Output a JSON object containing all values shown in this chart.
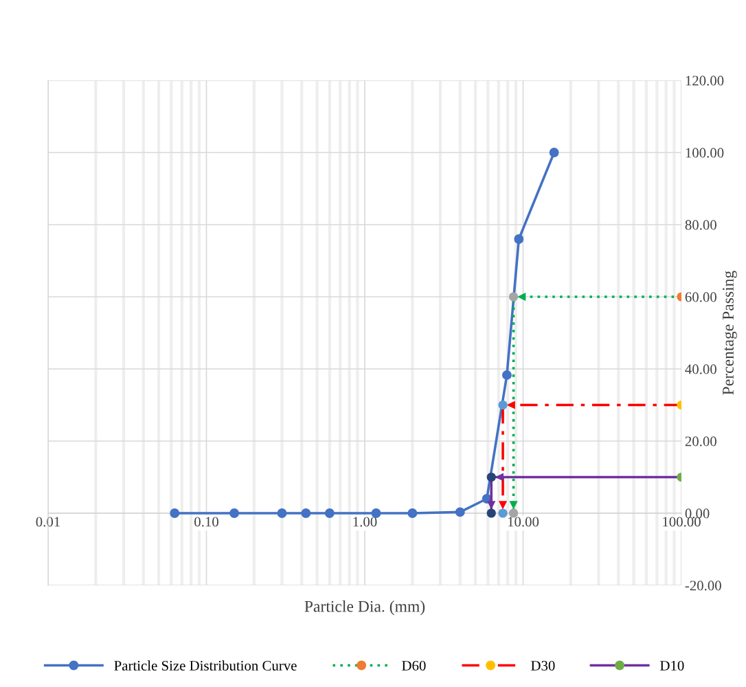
{
  "chart_data": {
    "type": "line",
    "xlabel": "Particle Dia. (mm)",
    "ylabel": "Percentage Passing",
    "log": "x",
    "grid": true,
    "legend": "bottom",
    "marker": "circle",
    "xlim": [
      0.01,
      100
    ],
    "xticks": [
      {
        "value": 0.01,
        "label": "0.01"
      },
      {
        "value": 0.1,
        "label": "0.10"
      },
      {
        "value": 1,
        "label": "1.00"
      },
      {
        "value": 10,
        "label": "10.00"
      },
      {
        "value": 100,
        "label": "100.00"
      }
    ],
    "ylim": [
      -20,
      120
    ],
    "yticks": [
      {
        "value": -20,
        "label": "-20.00"
      },
      {
        "value": 0,
        "label": "0.00"
      },
      {
        "value": 20,
        "label": "20.00"
      },
      {
        "value": 40,
        "label": "40.00"
      },
      {
        "value": 60,
        "label": "60.00"
      },
      {
        "value": 80,
        "label": "80.00"
      },
      {
        "value": 100,
        "label": "100.00"
      },
      {
        "value": 120,
        "label": "120.00"
      }
    ],
    "series": [
      {
        "name": "Particle Size Distribution Curve",
        "color": "#4472c4",
        "line_style": "solid",
        "x": [
          0.063,
          0.15,
          0.3,
          0.425,
          0.6,
          1.18,
          2.0,
          4.0,
          5.9,
          7.9,
          9.4,
          15.7
        ],
        "values": [
          0,
          0,
          0,
          0,
          0,
          0,
          0,
          0.3,
          4,
          38.3,
          76,
          100
        ]
      },
      {
        "name": "D60",
        "color": "#00b050",
        "line_style": "dotted",
        "x": [
          100,
          8.7,
          8.7
        ],
        "values": [
          60,
          60,
          0
        ],
        "colors": [
          "#ed7d31",
          "#a5a5a5",
          "#a5a5a5"
        ]
      },
      {
        "name": "D30",
        "color": "#ff0000",
        "line_style": "dashed",
        "x": [
          100,
          7.45,
          7.45
        ],
        "values": [
          30,
          30,
          0
        ],
        "colors": [
          "#ffc000",
          "#5b9bd5",
          "#5b9bd5"
        ]
      },
      {
        "name": "D10",
        "color": "#7030a0",
        "line_style": "solid",
        "x": [
          100,
          6.3,
          6.3
        ],
        "values": [
          10,
          10,
          0
        ],
        "colors": [
          "#70ad47",
          "#264478",
          "#264478"
        ]
      }
    ]
  }
}
